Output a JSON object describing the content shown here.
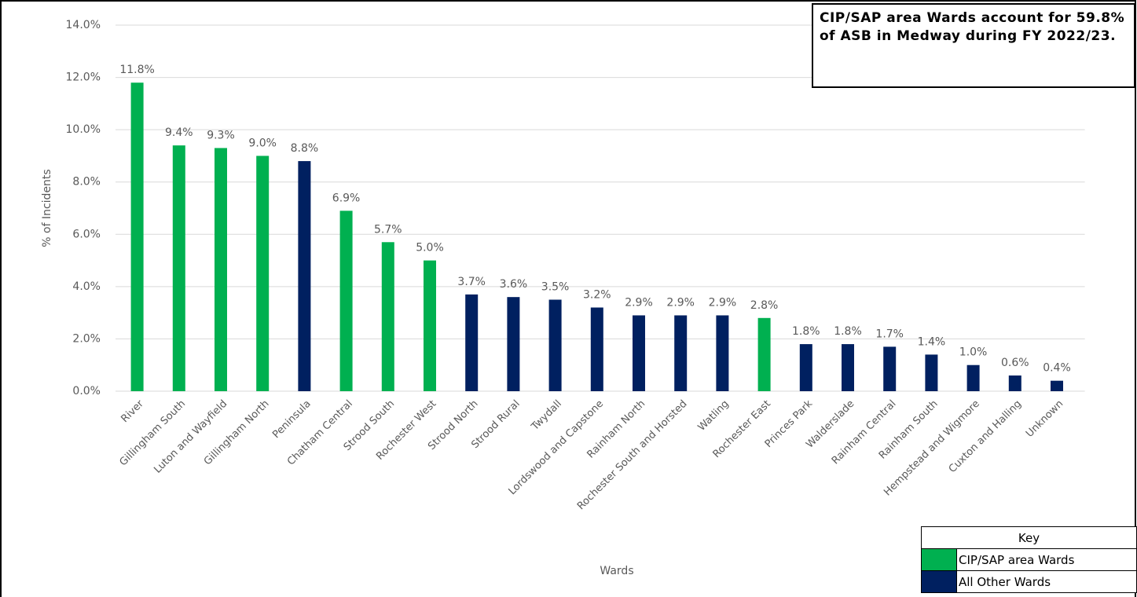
{
  "chart_data": {
    "type": "bar",
    "annotation": "CIP/SAP area Wards account for 59.8% of ASB in Medway during FY 2022/23.",
    "y_label": "% of Incidents",
    "x_label": "Wards",
    "categories": [
      "River",
      "Gillingham South",
      "Luton and Wayfield",
      "Gillingham North",
      "Peninsula",
      "Chatham Central",
      "Strood South",
      "Rochester West",
      "Strood North",
      "Strood Rural",
      "Twydall",
      "Lordswood and Capstone",
      "Rainham North",
      "Rochester South and Horsted",
      "Watling",
      "Rochester East",
      "Princes Park",
      "Walderslade",
      "Rainham Central",
      "Rainham South",
      "Hempstead and Wigmore",
      "Cuxton and Halling",
      "Unknown"
    ],
    "values": [
      11.8,
      9.4,
      9.3,
      9.0,
      8.8,
      6.9,
      5.7,
      5.0,
      3.7,
      3.6,
      3.5,
      3.2,
      2.9,
      2.9,
      2.9,
      2.8,
      1.8,
      1.8,
      1.7,
      1.4,
      1.0,
      0.6,
      0.4
    ],
    "value_labels": [
      "11.8%",
      "9.4%",
      "9.3%",
      "9.0%",
      "8.8%",
      "6.9%",
      "5.7%",
      "5.0%",
      "3.7%",
      "3.6%",
      "3.5%",
      "3.2%",
      "2.9%",
      "2.9%",
      "2.9%",
      "2.8%",
      "1.8%",
      "1.8%",
      "1.7%",
      "1.4%",
      "1.0%",
      "0.6%",
      "0.4%"
    ],
    "colors": [
      "#00b050",
      "#00b050",
      "#00b050",
      "#00b050",
      "#002060",
      "#00b050",
      "#00b050",
      "#00b050",
      "#002060",
      "#002060",
      "#002060",
      "#002060",
      "#002060",
      "#002060",
      "#002060",
      "#00b050",
      "#002060",
      "#002060",
      "#002060",
      "#002060",
      "#002060",
      "#002060",
      "#002060"
    ],
    "ylim": [
      0,
      14
    ],
    "yticks": [
      {
        "value": 0,
        "label": "0.0%"
      },
      {
        "value": 2,
        "label": "2.0%"
      },
      {
        "value": 4,
        "label": "4.0%"
      },
      {
        "value": 6,
        "label": "6.0%"
      },
      {
        "value": 8,
        "label": "8.0%"
      },
      {
        "value": 10,
        "label": "10.0%"
      },
      {
        "value": 12,
        "label": "12.0%"
      },
      {
        "value": 14,
        "label": "14.0%"
      }
    ],
    "grid": true,
    "legend": {
      "title": "Key",
      "entries": [
        {
          "name": "CIP/SAP area Wards",
          "color": "#00b050"
        },
        {
          "name": "All Other Wards",
          "color": "#002060"
        }
      ]
    }
  }
}
